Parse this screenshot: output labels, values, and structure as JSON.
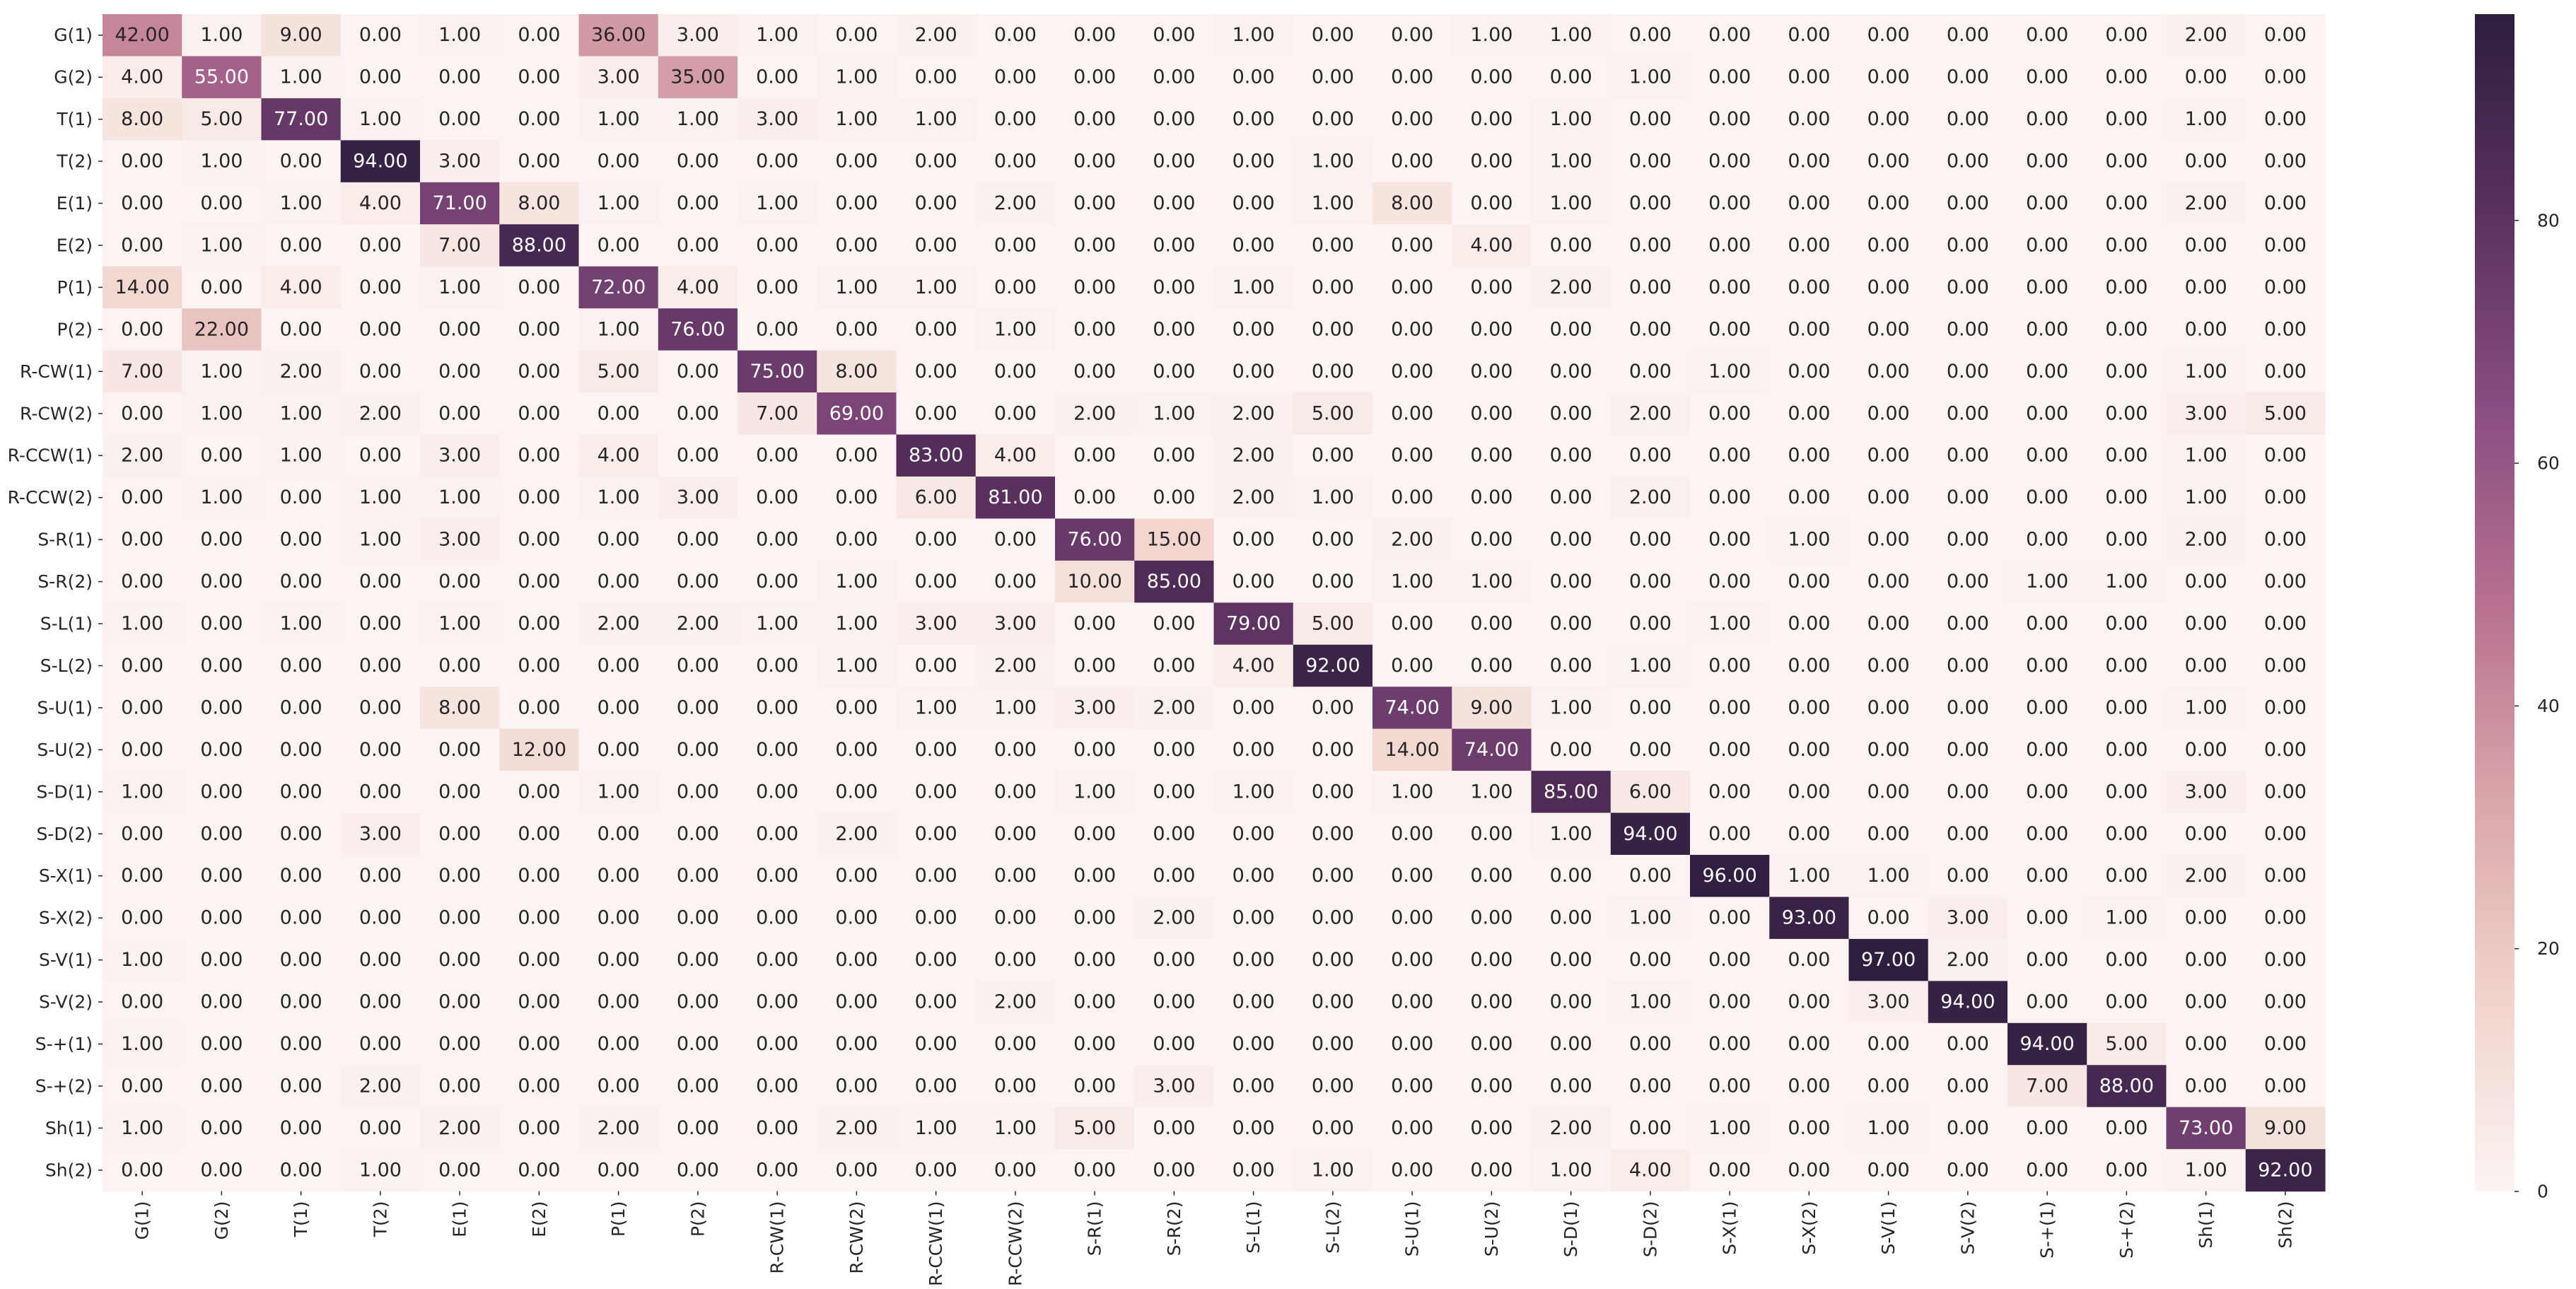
{
  "chart_data": {
    "type": "heatmap",
    "title": "",
    "xlabel": "",
    "ylabel": "",
    "row_labels": [
      "G(1)",
      "G(2)",
      "T(1)",
      "T(2)",
      "E(1)",
      "E(2)",
      "P(1)",
      "P(2)",
      "R-CW(1)",
      "R-CW(2)",
      "R-CCW(1)",
      "R-CCW(2)",
      "S-R(1)",
      "S-R(2)",
      "S-L(1)",
      "S-L(2)",
      "S-U(1)",
      "S-U(2)",
      "S-D(1)",
      "S-D(2)",
      "S-X(1)",
      "S-X(2)",
      "S-V(1)",
      "S-V(2)",
      "S-+(1)",
      "S-+(2)",
      "Sh(1)",
      "Sh(2)"
    ],
    "col_labels": [
      "G(1)",
      "G(2)",
      "T(1)",
      "T(2)",
      "E(1)",
      "E(2)",
      "P(1)",
      "P(2)",
      "R-CW(1)",
      "R-CW(2)",
      "R-CCW(1)",
      "R-CCW(2)",
      "S-R(1)",
      "S-R(2)",
      "S-L(1)",
      "S-L(2)",
      "S-U(1)",
      "S-U(2)",
      "S-D(1)",
      "S-D(2)",
      "S-X(1)",
      "S-X(2)",
      "S-V(1)",
      "S-V(2)",
      "S-+(1)",
      "S-+(2)",
      "Sh(1)",
      "Sh(2)"
    ],
    "values": [
      [
        42,
        1,
        9,
        0,
        1,
        0,
        36,
        3,
        1,
        0,
        2,
        0,
        0,
        0,
        1,
        0,
        0,
        1,
        1,
        0,
        0,
        0,
        0,
        0,
        0,
        0,
        2,
        0
      ],
      [
        4,
        55,
        1,
        0,
        0,
        0,
        3,
        35,
        0,
        1,
        0,
        0,
        0,
        0,
        0,
        0,
        0,
        0,
        0,
        1,
        0,
        0,
        0,
        0,
        0,
        0,
        0,
        0
      ],
      [
        8,
        5,
        77,
        1,
        0,
        0,
        1,
        1,
        3,
        1,
        1,
        0,
        0,
        0,
        0,
        0,
        0,
        0,
        1,
        0,
        0,
        0,
        0,
        0,
        0,
        0,
        1,
        0
      ],
      [
        0,
        1,
        0,
        94,
        3,
        0,
        0,
        0,
        0,
        0,
        0,
        0,
        0,
        0,
        0,
        1,
        0,
        0,
        1,
        0,
        0,
        0,
        0,
        0,
        0,
        0,
        0,
        0
      ],
      [
        0,
        0,
        1,
        4,
        71,
        8,
        1,
        0,
        1,
        0,
        0,
        2,
        0,
        0,
        0,
        1,
        8,
        0,
        1,
        0,
        0,
        0,
        0,
        0,
        0,
        0,
        2,
        0
      ],
      [
        0,
        1,
        0,
        0,
        7,
        88,
        0,
        0,
        0,
        0,
        0,
        0,
        0,
        0,
        0,
        0,
        0,
        4,
        0,
        0,
        0,
        0,
        0,
        0,
        0,
        0,
        0,
        0
      ],
      [
        14,
        0,
        4,
        0,
        1,
        0,
        72,
        4,
        0,
        1,
        1,
        0,
        0,
        0,
        1,
        0,
        0,
        0,
        2,
        0,
        0,
        0,
        0,
        0,
        0,
        0,
        0,
        0
      ],
      [
        0,
        22,
        0,
        0,
        0,
        0,
        1,
        76,
        0,
        0,
        0,
        1,
        0,
        0,
        0,
        0,
        0,
        0,
        0,
        0,
        0,
        0,
        0,
        0,
        0,
        0,
        0,
        0
      ],
      [
        7,
        1,
        2,
        0,
        0,
        0,
        5,
        0,
        75,
        8,
        0,
        0,
        0,
        0,
        0,
        0,
        0,
        0,
        0,
        0,
        1,
        0,
        0,
        0,
        0,
        0,
        1,
        0
      ],
      [
        0,
        1,
        1,
        2,
        0,
        0,
        0,
        0,
        7,
        69,
        0,
        0,
        2,
        1,
        2,
        5,
        0,
        0,
        0,
        2,
        0,
        0,
        0,
        0,
        0,
        0,
        3,
        5
      ],
      [
        2,
        0,
        1,
        0,
        3,
        0,
        4,
        0,
        0,
        0,
        83,
        4,
        0,
        0,
        2,
        0,
        0,
        0,
        0,
        0,
        0,
        0,
        0,
        0,
        0,
        0,
        1,
        0
      ],
      [
        0,
        1,
        0,
        1,
        1,
        0,
        1,
        3,
        0,
        0,
        6,
        81,
        0,
        0,
        2,
        1,
        0,
        0,
        0,
        2,
        0,
        0,
        0,
        0,
        0,
        0,
        1,
        0
      ],
      [
        0,
        0,
        0,
        1,
        3,
        0,
        0,
        0,
        0,
        0,
        0,
        0,
        76,
        15,
        0,
        0,
        2,
        0,
        0,
        0,
        0,
        1,
        0,
        0,
        0,
        0,
        2,
        0
      ],
      [
        0,
        0,
        0,
        0,
        0,
        0,
        0,
        0,
        0,
        1,
        0,
        0,
        10,
        85,
        0,
        0,
        1,
        1,
        0,
        0,
        0,
        0,
        0,
        0,
        1,
        1,
        0,
        0
      ],
      [
        1,
        0,
        1,
        0,
        1,
        0,
        2,
        2,
        1,
        1,
        3,
        3,
        0,
        0,
        79,
        5,
        0,
        0,
        0,
        0,
        1,
        0,
        0,
        0,
        0,
        0,
        0,
        0
      ],
      [
        0,
        0,
        0,
        0,
        0,
        0,
        0,
        0,
        0,
        1,
        0,
        2,
        0,
        0,
        4,
        92,
        0,
        0,
        0,
        1,
        0,
        0,
        0,
        0,
        0,
        0,
        0,
        0
      ],
      [
        0,
        0,
        0,
        0,
        8,
        0,
        0,
        0,
        0,
        0,
        1,
        1,
        3,
        2,
        0,
        0,
        74,
        9,
        1,
        0,
        0,
        0,
        0,
        0,
        0,
        0,
        1,
        0
      ],
      [
        0,
        0,
        0,
        0,
        0,
        12,
        0,
        0,
        0,
        0,
        0,
        0,
        0,
        0,
        0,
        0,
        14,
        74,
        0,
        0,
        0,
        0,
        0,
        0,
        0,
        0,
        0,
        0
      ],
      [
        1,
        0,
        0,
        0,
        0,
        0,
        1,
        0,
        0,
        0,
        0,
        0,
        1,
        0,
        1,
        0,
        1,
        1,
        85,
        6,
        0,
        0,
        0,
        0,
        0,
        0,
        3,
        0
      ],
      [
        0,
        0,
        0,
        3,
        0,
        0,
        0,
        0,
        0,
        2,
        0,
        0,
        0,
        0,
        0,
        0,
        0,
        0,
        1,
        94,
        0,
        0,
        0,
        0,
        0,
        0,
        0,
        0
      ],
      [
        0,
        0,
        0,
        0,
        0,
        0,
        0,
        0,
        0,
        0,
        0,
        0,
        0,
        0,
        0,
        0,
        0,
        0,
        0,
        0,
        96,
        1,
        1,
        0,
        0,
        0,
        2,
        0
      ],
      [
        0,
        0,
        0,
        0,
        0,
        0,
        0,
        0,
        0,
        0,
        0,
        0,
        0,
        2,
        0,
        0,
        0,
        0,
        0,
        1,
        0,
        93,
        0,
        3,
        0,
        1,
        0,
        0
      ],
      [
        1,
        0,
        0,
        0,
        0,
        0,
        0,
        0,
        0,
        0,
        0,
        0,
        0,
        0,
        0,
        0,
        0,
        0,
        0,
        0,
        0,
        0,
        97,
        2,
        0,
        0,
        0,
        0
      ],
      [
        0,
        0,
        0,
        0,
        0,
        0,
        0,
        0,
        0,
        0,
        0,
        2,
        0,
        0,
        0,
        0,
        0,
        0,
        0,
        1,
        0,
        0,
        3,
        94,
        0,
        0,
        0,
        0
      ],
      [
        1,
        0,
        0,
        0,
        0,
        0,
        0,
        0,
        0,
        0,
        0,
        0,
        0,
        0,
        0,
        0,
        0,
        0,
        0,
        0,
        0,
        0,
        0,
        0,
        94,
        5,
        0,
        0
      ],
      [
        0,
        0,
        0,
        2,
        0,
        0,
        0,
        0,
        0,
        0,
        0,
        0,
        0,
        3,
        0,
        0,
        0,
        0,
        0,
        0,
        0,
        0,
        0,
        0,
        7,
        88,
        0,
        0
      ],
      [
        1,
        0,
        0,
        0,
        2,
        0,
        2,
        0,
        0,
        2,
        1,
        1,
        5,
        0,
        0,
        0,
        0,
        0,
        2,
        0,
        1,
        0,
        1,
        0,
        0,
        0,
        73,
        9
      ],
      [
        0,
        0,
        0,
        1,
        0,
        0,
        0,
        0,
        0,
        0,
        0,
        0,
        0,
        0,
        0,
        1,
        0,
        0,
        1,
        4,
        0,
        0,
        0,
        0,
        0,
        0,
        1,
        92
      ]
    ],
    "value_format": "0.00",
    "value_range": [
      0,
      97
    ],
    "colorbar": {
      "ticks": [
        0,
        20,
        40,
        60,
        80
      ],
      "placement": "right"
    },
    "colormap": [
      "#fbf4f2",
      "#f2d3cc",
      "#d9a6a9",
      "#b7708f",
      "#884d82",
      "#5a315e",
      "#2d1e3e"
    ],
    "grid": false,
    "legend": "none"
  }
}
